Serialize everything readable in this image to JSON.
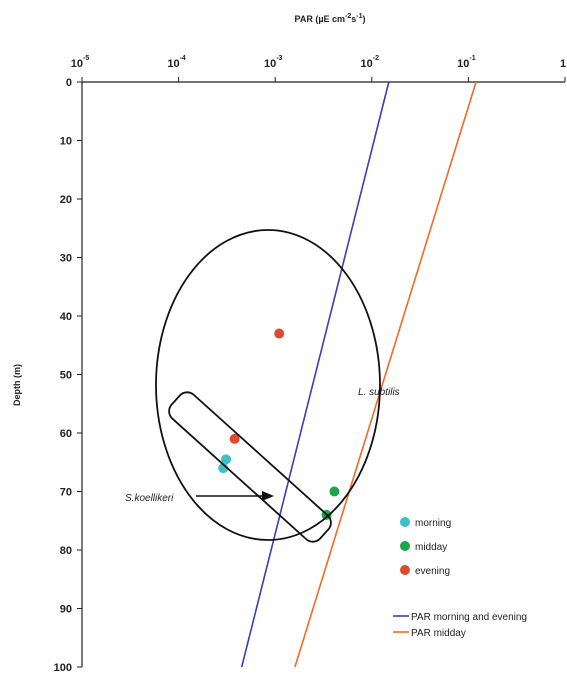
{
  "chart_data": {
    "type": "scatter",
    "xlabel": "PAR (µE cm",
    "xlabel_units": {
      "exp1": "-2",
      "mid": "s",
      "exp2": "-1",
      "close": ")"
    },
    "ylabel": "Depth (m)",
    "x_scale": "log",
    "xlim": [
      1e-05,
      1
    ],
    "ylim": [
      0,
      100
    ],
    "y_inverted": true,
    "x_axis_position": "top",
    "x_ticks": [
      {
        "value": 1e-05,
        "base": "10",
        "exp": "-5"
      },
      {
        "value": 0.0001,
        "base": "10",
        "exp": "-4"
      },
      {
        "value": 0.001,
        "base": "10",
        "exp": "-3"
      },
      {
        "value": 0.01,
        "base": "10",
        "exp": "-2"
      },
      {
        "value": 0.1,
        "base": "10",
        "exp": "-1"
      },
      {
        "value": 1,
        "base": "1",
        "exp": ""
      }
    ],
    "y_ticks": [
      0,
      10,
      20,
      30,
      40,
      50,
      60,
      70,
      80,
      90,
      100
    ],
    "grid": false,
    "lines": [
      {
        "name": "PAR  morning and evening",
        "color": "#3a3fb0",
        "x": [
          0.015,
          0.00045
        ],
        "y": [
          0,
          100
        ]
      },
      {
        "name": "PAR  midday",
        "color": "#f06a2a",
        "x": [
          0.12,
          0.0016
        ],
        "y": [
          0,
          100
        ]
      }
    ],
    "series": [
      {
        "name": "morning",
        "color": "#3cc0c8",
        "points": [
          {
            "x": 0.00031,
            "y": 64.5
          },
          {
            "x": 0.00029,
            "y": 66
          }
        ]
      },
      {
        "name": "midday",
        "color": "#1aa64a",
        "points": [
          {
            "x": 0.0041,
            "y": 70
          },
          {
            "x": 0.0034,
            "y": 74
          }
        ]
      },
      {
        "name": "evening",
        "color": "#e04a2a",
        "points": [
          {
            "x": 0.0011,
            "y": 43
          },
          {
            "x": 0.00038,
            "y": 61
          }
        ]
      }
    ],
    "annotations": {
      "l_subtilis": "L. subtilis",
      "s_koellikeri": "S.koellikeri"
    },
    "legend_position": "bottom-right"
  }
}
